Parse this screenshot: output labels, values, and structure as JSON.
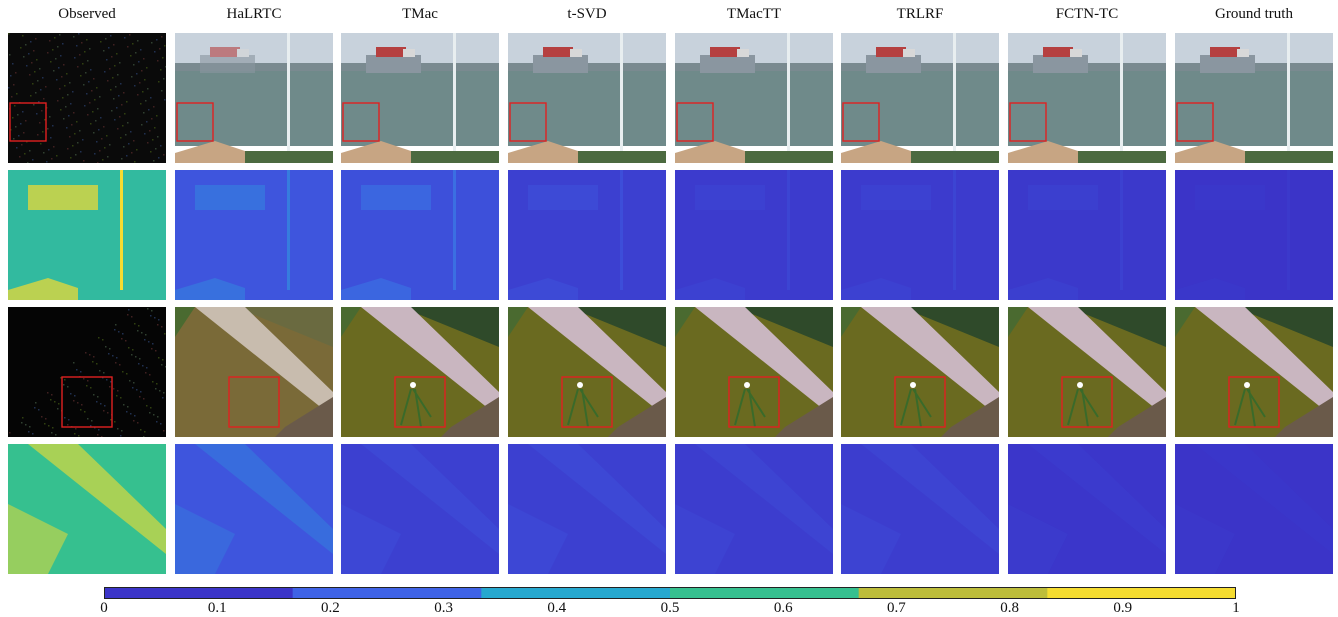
{
  "columns": [
    "Observed",
    "HaLRTC",
    "TMac",
    "t-SVD",
    "TMacTT",
    "TRLRF",
    "FCTN-TC",
    "Ground truth"
  ],
  "rows": [
    {
      "type": "recovered",
      "scene": "ship"
    },
    {
      "type": "error",
      "scene": "ship"
    },
    {
      "type": "recovered",
      "scene": "flower"
    },
    {
      "type": "error",
      "scene": "flower"
    }
  ],
  "error_levels": {
    "ship": [
      0.55,
      0.14,
      0.12,
      0.05,
      0.03,
      0.03,
      0.02,
      0.0
    ],
    "flower": [
      0.6,
      0.14,
      0.05,
      0.05,
      0.04,
      0.04,
      0.01,
      0.0
    ]
  },
  "colorbar": {
    "ticks": [
      "0",
      "0.1",
      "0.2",
      "0.3",
      "0.4",
      "0.5",
      "0.6",
      "0.7",
      "0.8",
      "0.9",
      "1"
    ],
    "colors": [
      "#3b34c8",
      "#3f63e6",
      "#26a8cf",
      "#36c08f",
      "#bdbd3a",
      "#f5dc30"
    ]
  },
  "zoom_box_color": "#e02020"
}
